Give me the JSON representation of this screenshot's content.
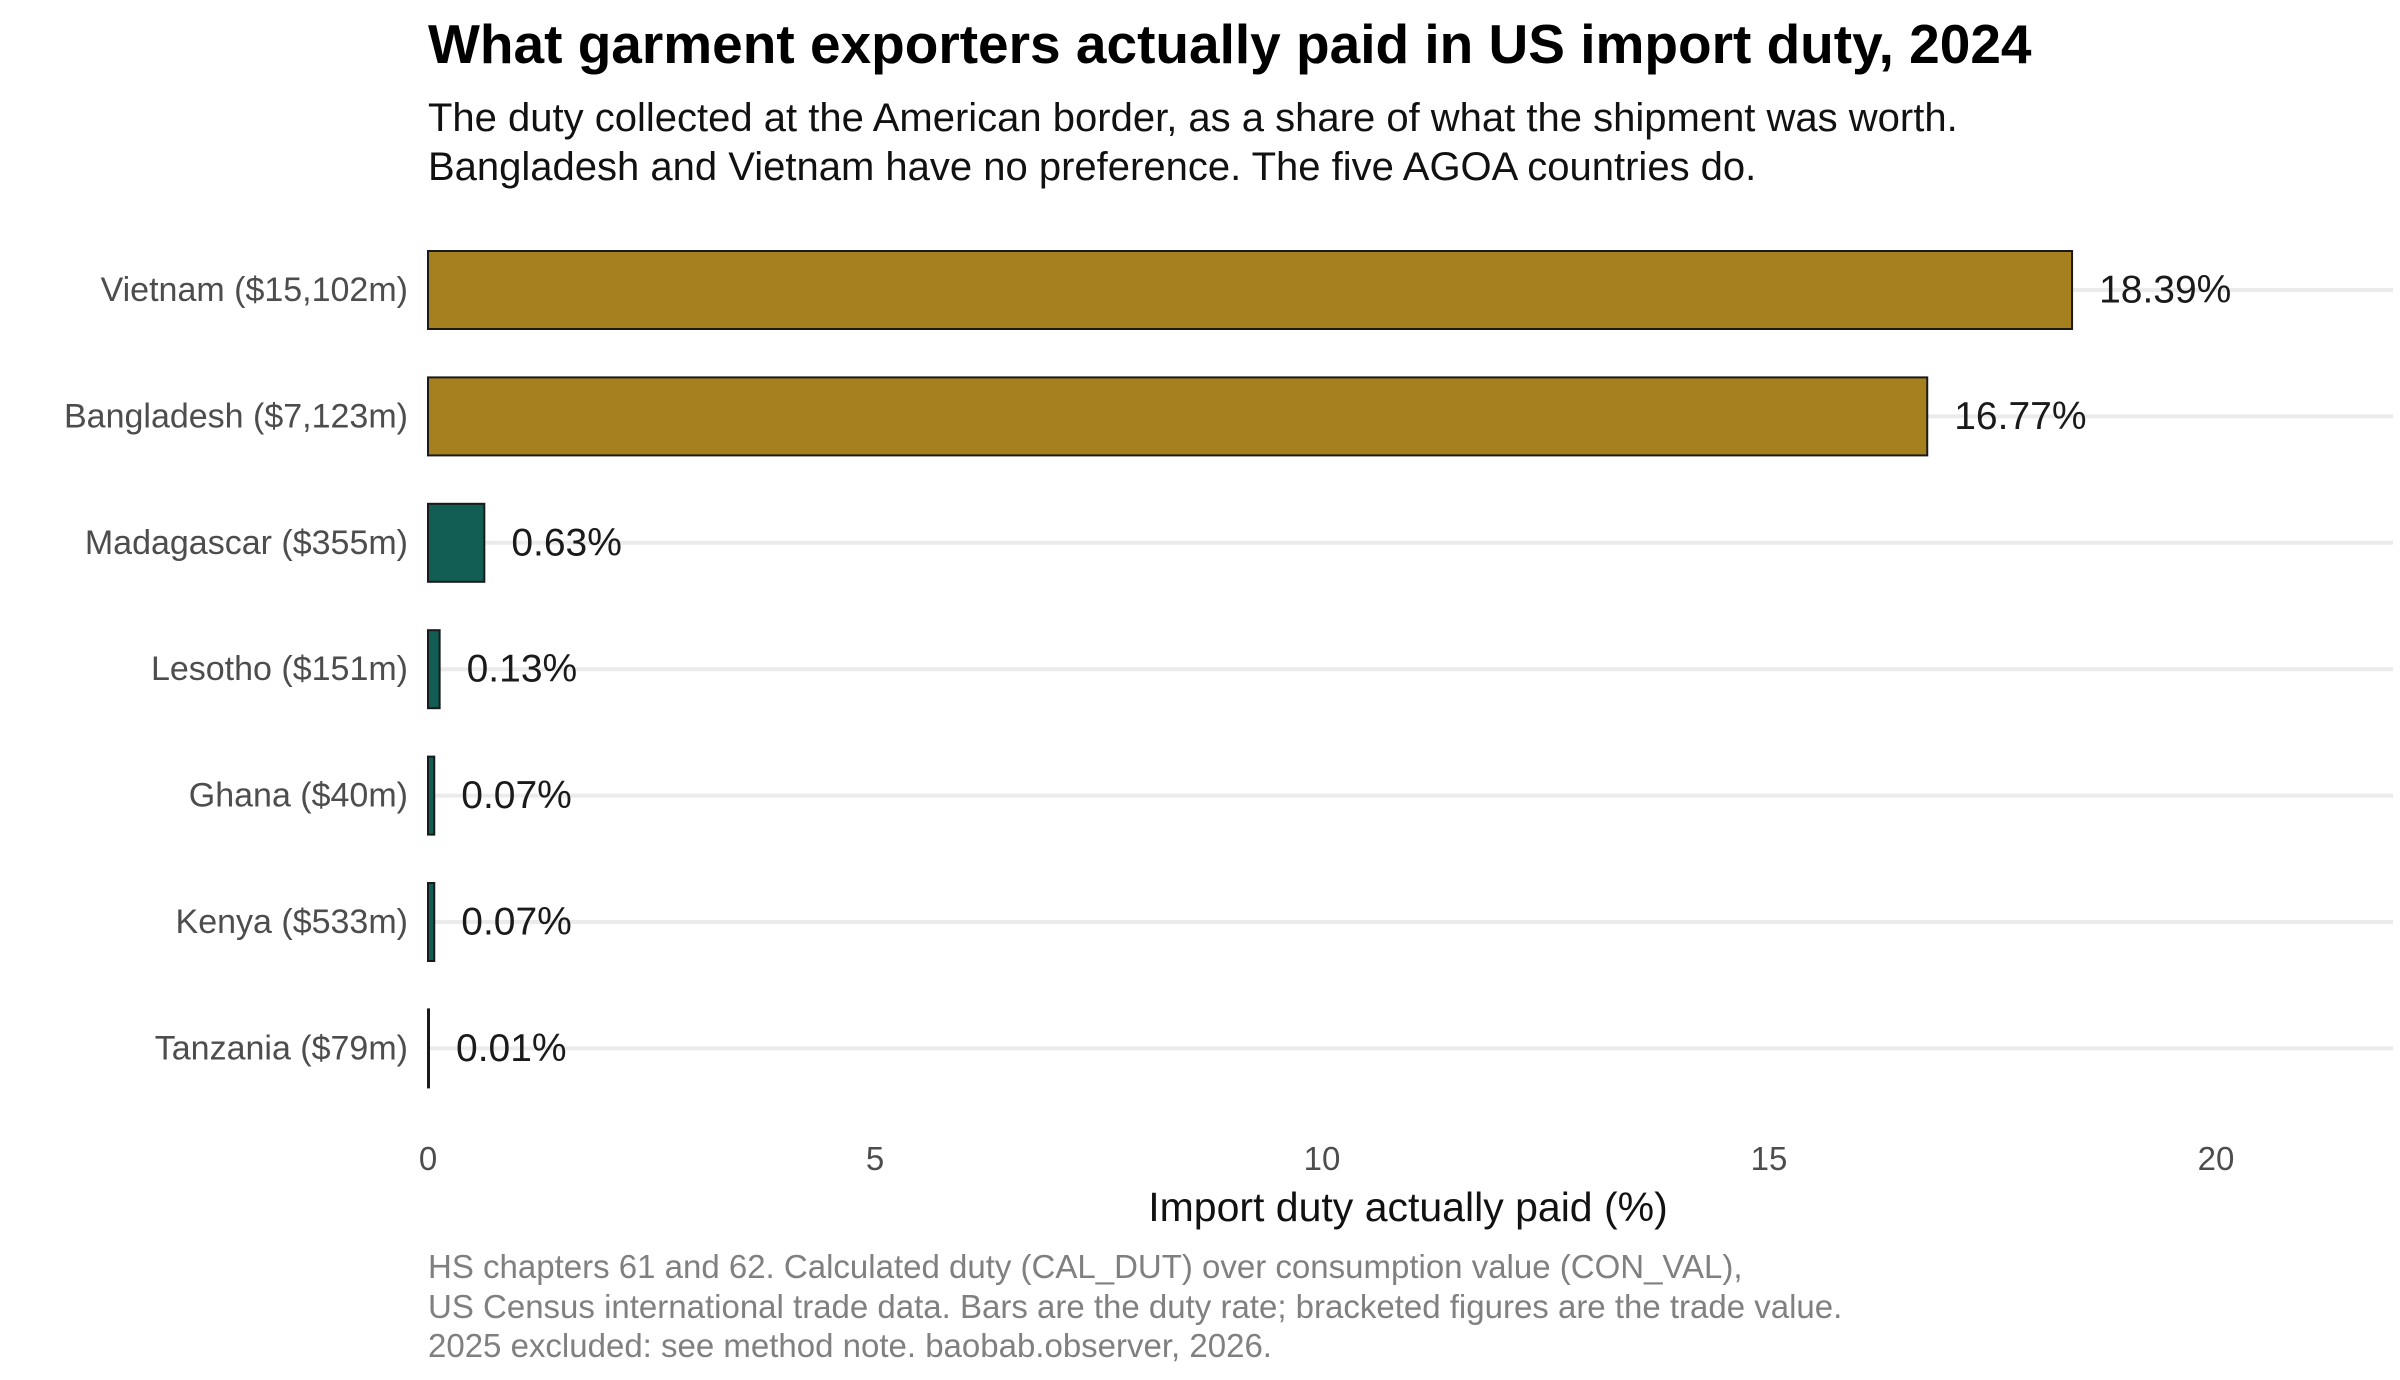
{
  "chart_data": {
    "type": "bar",
    "orientation": "horizontal",
    "title": "What garment exporters actually paid in US import duty, 2024",
    "subtitle_lines": [
      "The duty collected at the American border, as a share of what the shipment was worth.",
      "Bangladesh and Vietnam have no preference. The five AGOA countries do."
    ],
    "categories": [
      "Vietnam  ($15,102m)",
      "Bangladesh  ($7,123m)",
      "Madagascar  ($355m)",
      "Lesotho  ($151m)",
      "Ghana  ($40m)",
      "Kenya  ($533m)",
      "Tanzania  ($79m)"
    ],
    "values": [
      18.39,
      16.77,
      0.63,
      0.13,
      0.07,
      0.07,
      0.01
    ],
    "value_labels": [
      "18.39%",
      "16.77%",
      "0.63%",
      "0.13%",
      "0.07%",
      "0.07%",
      "0.01%"
    ],
    "groups": [
      "no-preference",
      "no-preference",
      "agoa",
      "agoa",
      "agoa",
      "agoa",
      "agoa"
    ],
    "colors": {
      "no-preference": "#a67f1f",
      "agoa": "#125e54",
      "bar_outline": "#1a1a1a",
      "gridline": "#ebebeb"
    },
    "xlabel": "Import duty actually paid (%)",
    "ylabel": "",
    "xlim": [
      0,
      22
    ],
    "xticks": [
      0,
      5,
      10,
      15,
      20
    ],
    "grid": "horizontal major lines only",
    "legend": "none",
    "caption_lines": [
      "HS chapters 61 and 62. Calculated duty (CAL_DUT) over consumption value (CON_VAL),",
      "US Census international trade data. Bars are the duty rate; bracketed figures are the trade value.",
      "2025 excluded: see method note. baobab.observer, 2026."
    ]
  }
}
